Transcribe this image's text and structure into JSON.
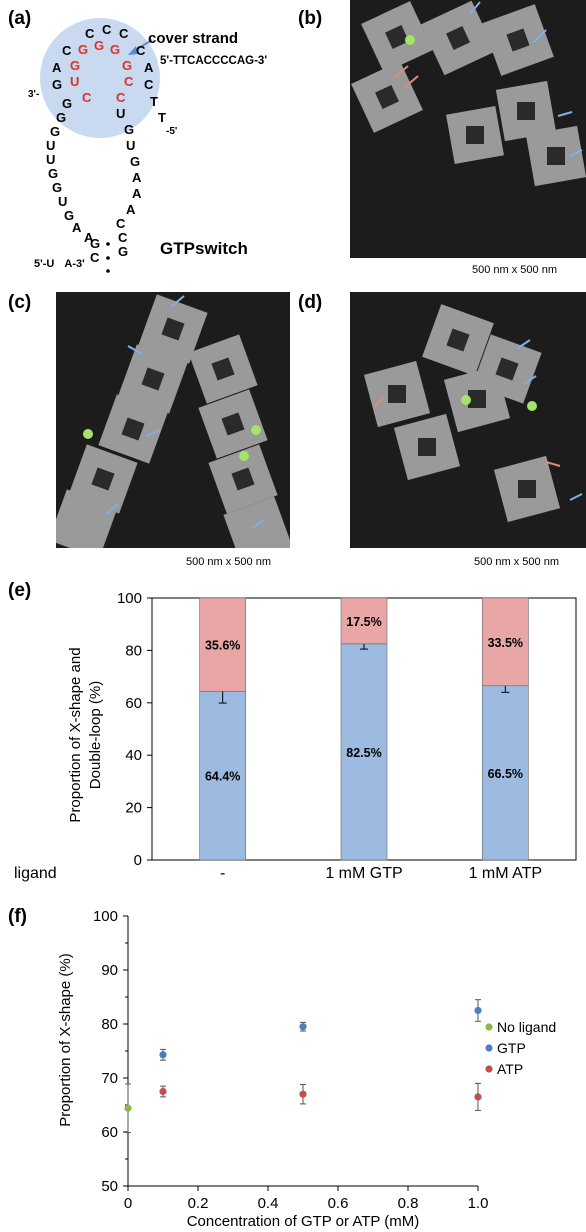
{
  "panels": {
    "a": {
      "label": "(a)",
      "cover_title": "cover strand",
      "cover_seq": "5'-TTCACCCCAG-3'",
      "switch_name": "GTPswitch",
      "end_3_left": "3'-",
      "end_5_right": "-5'",
      "end_5_bottom": "5'-",
      "end_3_bottom": "-3'",
      "colors": {
        "cover_highlight": "#c9d9f0",
        "red_nt": "#e0302a",
        "arrow": "#5b8dc9"
      }
    },
    "b": {
      "label": "(b)",
      "caption": "500 nm x 500 nm"
    },
    "c": {
      "label": "(c)",
      "caption": "500 nm x 500 nm"
    },
    "d": {
      "label": "(d)",
      "caption": "500 nm x 500 nm"
    },
    "e": {
      "label": "(e)"
    },
    "f": {
      "label": "(f)"
    }
  },
  "afm_colors": {
    "background": "#1c1c1c",
    "origami": "#9a9a9a",
    "blue_arrow": "#7fb0e8",
    "red_arrow": "#e08a78",
    "green_dot": "#a6e36b"
  },
  "chart_data": [
    {
      "type": "bar",
      "stacked": true,
      "categories": [
        "-",
        "1 mM GTP",
        "1 mM ATP"
      ],
      "xlabel_prefix": "ligand",
      "ylabel_line1": "Proportion of X-shape and",
      "ylabel_line2": "Double-loop (%)",
      "ylim": [
        0,
        100
      ],
      "yticks": [
        0,
        20,
        40,
        60,
        80,
        100
      ],
      "series": [
        {
          "values": [
            64.4,
            82.5,
            66.5
          ],
          "labels": [
            "64.4%",
            "82.5%",
            "66.5%"
          ],
          "color": "#9dbbe0",
          "errors": [
            4.5,
            2.0,
            2.5
          ]
        },
        {
          "values": [
            35.6,
            17.5,
            33.5
          ],
          "labels": [
            "35.6%",
            "17.5%",
            "33.5%"
          ],
          "color": "#e8a6a6"
        }
      ]
    },
    {
      "type": "scatter",
      "xlabel": "Concentration of GTP or ATP (mM)",
      "ylabel": "Proportion of X-shape (%)",
      "xlim": [
        0,
        1.0
      ],
      "ylim": [
        50,
        100
      ],
      "xticks": [
        "0",
        "0.2",
        "0.4",
        "0.6",
        "0.8",
        "1.0"
      ],
      "yticks": [
        "50",
        "60",
        "70",
        "80",
        "90",
        "100"
      ],
      "series": [
        {
          "name": "No ligand",
          "color": "#8ab84a",
          "points": [
            [
              0,
              64.4
            ]
          ],
          "errors": [
            4.5
          ]
        },
        {
          "name": "GTP",
          "color": "#4a7ec3",
          "points": [
            [
              0.1,
              74.3
            ],
            [
              0.5,
              79.5
            ],
            [
              1.0,
              82.5
            ]
          ],
          "errors": [
            1.0,
            0.8,
            2.0
          ]
        },
        {
          "name": "ATP",
          "color": "#c0504d",
          "points": [
            [
              0.1,
              67.5
            ],
            [
              0.5,
              67.0
            ],
            [
              1.0,
              66.5
            ]
          ],
          "errors": [
            1.0,
            1.8,
            2.5
          ]
        }
      ]
    }
  ]
}
